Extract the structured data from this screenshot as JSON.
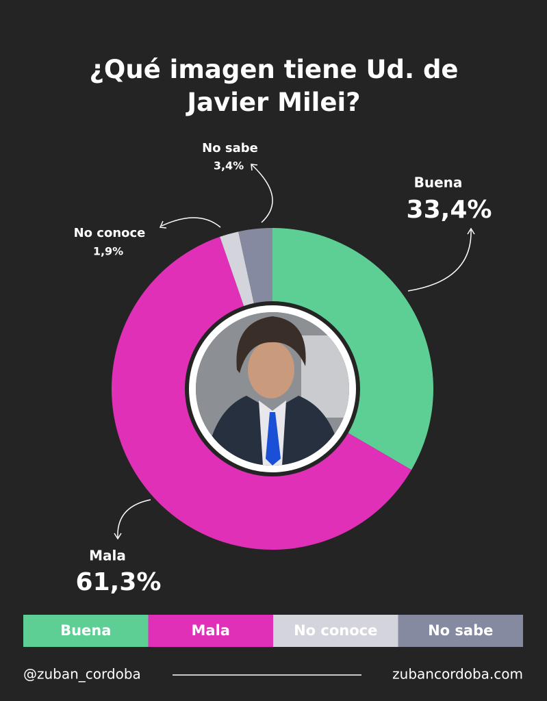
{
  "chart_data": {
    "type": "pie",
    "donut": true,
    "title": "¿Qué imagen tiene Ud. de Javier Milei?",
    "categories": [
      "Buena",
      "Mala",
      "No conoce",
      "No sabe"
    ],
    "values": [
      33.4,
      61.3,
      1.9,
      3.4
    ],
    "value_labels": [
      "33,4%",
      "61,3%",
      "1,9%",
      "3,4%"
    ],
    "colors": [
      "#5ecf94",
      "#e030b8",
      "#d4d4dc",
      "#858aa0"
    ],
    "footer_left": "@zuban_cordoba",
    "footer_right": "zubancordoba.com"
  }
}
